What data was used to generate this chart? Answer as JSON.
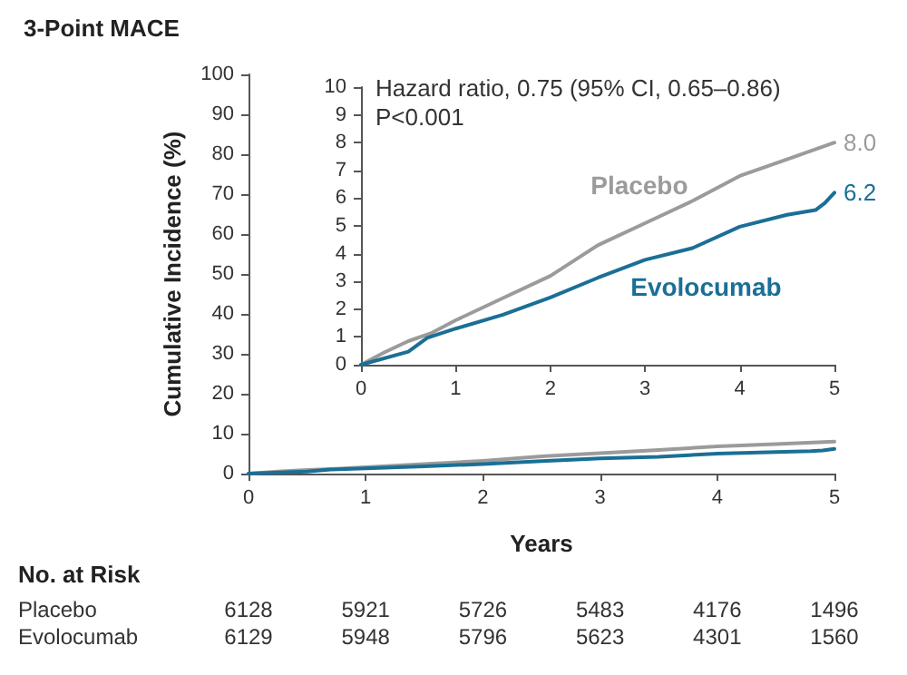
{
  "chart_data": [
    {
      "type": "line",
      "title": "3-Point MACE",
      "xlabel": "Years",
      "ylabel": "Cumulative Incidence (%)",
      "xlim": [
        0,
        5
      ],
      "xticks": [
        0,
        1,
        2,
        3,
        4,
        5
      ],
      "ylim": [
        0,
        100
      ],
      "yticks": [
        0,
        10,
        20,
        30,
        40,
        50,
        60,
        70,
        80,
        90,
        100
      ],
      "grid": false,
      "legend": false,
      "marker": "none",
      "line_style": "solid",
      "series": [
        {
          "color": "#9b9b9b",
          "x": [
            0,
            0.25,
            0.5,
            0.75,
            1,
            1.5,
            2,
            2.5,
            3,
            3.5,
            4,
            4.5,
            5
          ],
          "values": [
            0,
            0.5,
            0.9,
            1.2,
            1.6,
            2.4,
            3.2,
            4.3,
            5.1,
            5.9,
            6.8,
            7.4,
            8.0
          ]
        },
        {
          "color": "#1a6f96",
          "x": [
            0,
            0.5,
            0.7,
            1,
            1.5,
            2,
            2.5,
            3,
            3.5,
            4,
            4.5,
            4.8,
            4.9,
            5
          ],
          "values": [
            0,
            0.5,
            1.0,
            1.3,
            1.8,
            2.4,
            3.1,
            3.8,
            4.2,
            5.0,
            5.4,
            5.6,
            5.8,
            6.2
          ]
        }
      ],
      "annotations": [
        "No. at Risk",
        "Placebo",
        "6128",
        "5921",
        "5726",
        "5483",
        "4176",
        "1496",
        "Evolocumab",
        "6129",
        "5948",
        "5796",
        "5623",
        "4301",
        "1560"
      ]
    },
    {
      "type": "line",
      "xlim": [
        0,
        5
      ],
      "xticks": [
        0,
        1,
        2,
        3,
        4,
        5
      ],
      "ylim": [
        0,
        10
      ],
      "yticks": [
        0,
        1,
        2,
        3,
        4,
        5,
        6,
        7,
        8,
        9,
        10
      ],
      "grid": false,
      "legend": false,
      "marker": "none",
      "line_style": "solid",
      "series": [
        {
          "name": "Placebo",
          "color": "#9b9b9b",
          "x": [
            0,
            0.25,
            0.5,
            0.75,
            1,
            1.5,
            2,
            2.5,
            3,
            3.5,
            4,
            4.5,
            5
          ],
          "values": [
            0,
            0.45,
            0.85,
            1.15,
            1.6,
            2.4,
            3.2,
            4.3,
            5.1,
            5.9,
            6.8,
            7.4,
            8.0
          ],
          "value_labels": [
            null,
            null,
            null,
            null,
            null,
            null,
            null,
            null,
            null,
            null,
            null,
            null,
            "8.0"
          ]
        },
        {
          "name": "Evolocumab",
          "color": "#1a6f96",
          "x": [
            0,
            0.5,
            0.7,
            1,
            1.5,
            2,
            2.5,
            3,
            3.5,
            4,
            4.5,
            4.8,
            4.9,
            5
          ],
          "values": [
            0,
            0.47,
            0.97,
            1.3,
            1.8,
            2.42,
            3.13,
            3.78,
            4.2,
            4.97,
            5.4,
            5.57,
            5.83,
            6.2
          ],
          "value_labels": [
            null,
            null,
            null,
            null,
            null,
            null,
            null,
            null,
            null,
            null,
            null,
            null,
            null,
            "6.2"
          ]
        }
      ],
      "annotations": [
        "Hazard ratio, 0.75 (95% CI, 0.65–0.86)",
        "P<0.001"
      ]
    }
  ]
}
